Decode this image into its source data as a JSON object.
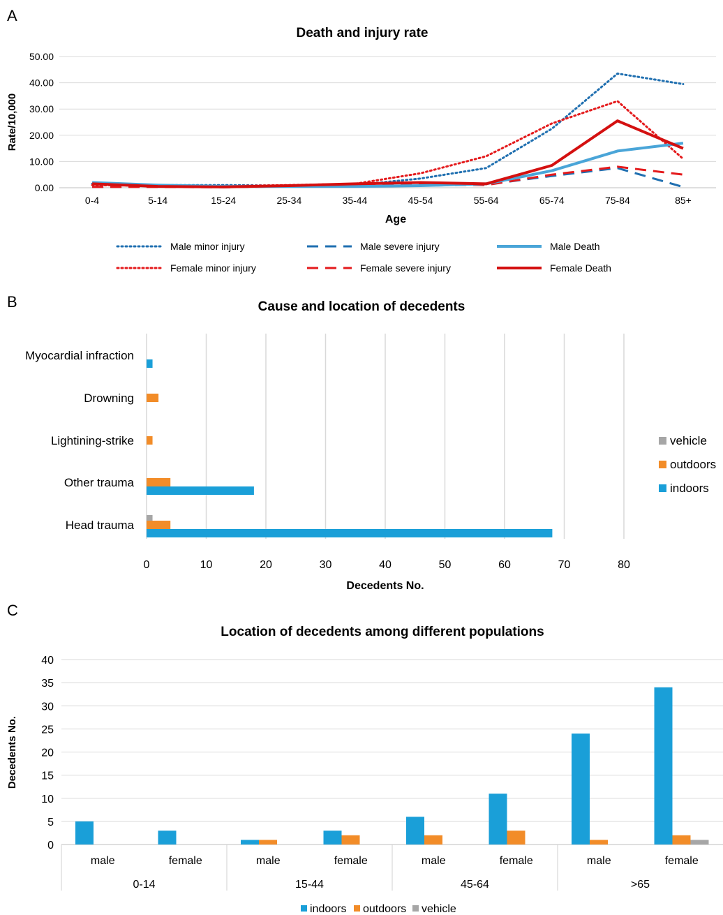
{
  "panels": {
    "A": "A",
    "B": "B",
    "C": "C"
  },
  "chart_data": [
    {
      "id": "A",
      "type": "line",
      "title": "Death and injury rate",
      "xlabel": "Age",
      "ylabel": "Rate/10,000",
      "categories": [
        "0-4",
        "5-14",
        "15-24",
        "25-34",
        "35-44",
        "45-54",
        "55-64",
        "65-74",
        "75-84",
        "85+"
      ],
      "ylim": [
        0,
        50
      ],
      "yticks": [
        "0.00",
        "10.00",
        "20.00",
        "30.00",
        "40.00",
        "50.00"
      ],
      "grid": true,
      "series": [
        {
          "name": "Male minor injury",
          "color": "#1f6fb0",
          "style": "dotted",
          "values": [
            1.5,
            1.0,
            1.0,
            0.8,
            1.0,
            3.5,
            7.5,
            22.5,
            43.5,
            39.5
          ]
        },
        {
          "name": "Female minor injury",
          "color": "#e41a1c",
          "style": "dotted",
          "values": [
            1.0,
            0.8,
            0.6,
            1.0,
            1.5,
            5.5,
            12.0,
            24.5,
            33.0,
            11.0
          ]
        },
        {
          "name": "Male severe injury",
          "color": "#1f6fb0",
          "style": "dashed",
          "values": [
            0.3,
            0.4,
            0.2,
            0.5,
            0.5,
            0.8,
            1.2,
            4.5,
            7.5,
            0.3
          ]
        },
        {
          "name": "Female severe injury",
          "color": "#e41a1c",
          "style": "dashed",
          "values": [
            0.3,
            0.3,
            0.2,
            0.5,
            0.8,
            1.2,
            1.0,
            5.0,
            8.0,
            5.0
          ]
        },
        {
          "name": "Male Death",
          "color": "#4aa5d8",
          "style": "solid",
          "values": [
            2.0,
            1.0,
            0.5,
            0.5,
            0.5,
            0.8,
            1.5,
            6.5,
            14.0,
            17.0
          ]
        },
        {
          "name": "Female Death",
          "color": "#d41010",
          "style": "solid",
          "values": [
            1.5,
            0.5,
            0.3,
            0.8,
            1.5,
            2.0,
            1.5,
            8.5,
            25.5,
            15.0
          ]
        }
      ]
    },
    {
      "id": "B",
      "type": "bar",
      "orientation": "horizontal",
      "title": "Cause and location of decedents",
      "xlabel": "Decedents No.",
      "categories": [
        "Myocardial infraction",
        "Drowning",
        "Lightining-strike",
        "Other trauma",
        "Head trauma"
      ],
      "xlim": [
        0,
        80
      ],
      "xticks": [
        "0",
        "10",
        "20",
        "30",
        "40",
        "50",
        "60",
        "70",
        "80"
      ],
      "grid": true,
      "legend_position": "right",
      "legend_order": [
        "vehicle",
        "outdoors",
        "indoors"
      ],
      "series": [
        {
          "name": "vehicle",
          "color": "#a6a6a6",
          "values": [
            0,
            0,
            0,
            0,
            1
          ]
        },
        {
          "name": "outdoors",
          "color": "#f28c28",
          "values": [
            0,
            2,
            1,
            4,
            4
          ]
        },
        {
          "name": "indoors",
          "color": "#1a9fd8",
          "values": [
            1,
            0,
            0,
            18,
            68
          ]
        }
      ]
    },
    {
      "id": "C",
      "type": "bar",
      "title": "Location of decedents among different populations",
      "ylabel": "Decedents No.",
      "groups": [
        "0-14",
        "15-44",
        "45-64",
        ">65"
      ],
      "categories": [
        "male",
        "female",
        "male",
        "female",
        "male",
        "female",
        "male",
        "female"
      ],
      "ylim": [
        0,
        40
      ],
      "yticks": [
        "0",
        "5",
        "10",
        "15",
        "20",
        "25",
        "30",
        "35",
        "40"
      ],
      "grid": true,
      "legend_position": "bottom",
      "series": [
        {
          "name": "indoors",
          "color": "#1a9fd8",
          "values": [
            5,
            3,
            1,
            3,
            6,
            11,
            24,
            34
          ]
        },
        {
          "name": "outdoors",
          "color": "#f28c28",
          "values": [
            0,
            0,
            1,
            2,
            2,
            3,
            1,
            2
          ]
        },
        {
          "name": "vehicle",
          "color": "#a6a6a6",
          "values": [
            0,
            0,
            0,
            0,
            0,
            0,
            0,
            1
          ]
        }
      ]
    }
  ]
}
